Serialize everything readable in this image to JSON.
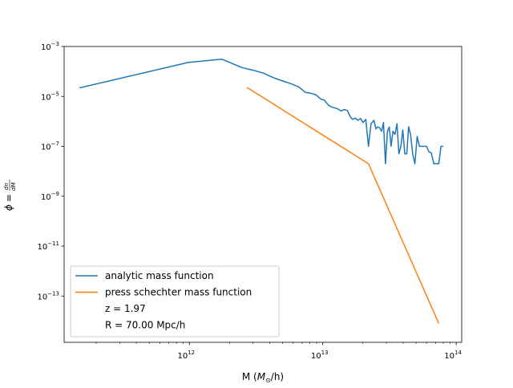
{
  "chart_data": {
    "type": "line",
    "title": "",
    "xlabel": "M ($M_\\odot$/h)",
    "ylabel": "$\\phi = \\frac{dn}{dM}$",
    "xscale": "log",
    "yscale": "log",
    "xlim": [
      115000000000.0,
      110000000000000.0
    ],
    "ylim": [
      1.4e-15,
      0.001
    ],
    "grid": false,
    "legend_position": "lower-left",
    "x_ticks": [
      {
        "value": 1000000000000.0,
        "base": "10",
        "exp": "12"
      },
      {
        "value": 10000000000000.0,
        "base": "10",
        "exp": "13"
      },
      {
        "value": 100000000000000.0,
        "base": "10",
        "exp": "14"
      }
    ],
    "y_ticks": [
      {
        "value": 1e-13,
        "base": "10",
        "exp": "−13"
      },
      {
        "value": 1e-11,
        "base": "10",
        "exp": "−11"
      },
      {
        "value": 1e-09,
        "base": "10",
        "exp": "−9"
      },
      {
        "value": 1e-07,
        "base": "10",
        "exp": "−7"
      },
      {
        "value": 1e-05,
        "base": "10",
        "exp": "−5"
      },
      {
        "value": 0.001,
        "base": "10",
        "exp": "−3"
      }
    ],
    "series": [
      {
        "name": "analytic mass function",
        "color": "#1f77b4",
        "x": [
          150000000000.0,
          980000000000.0,
          1750000000000.0,
          2500000000000.0,
          3050000000000.0,
          3600000000000.0,
          4300000000000.0,
          5100000000000.0,
          5800000000000.0,
          6600000000000.0,
          7400000000000.0,
          8100000000000.0,
          8900000000000.0,
          9600000000000.0,
          10300000000000.0,
          11000000000000.0,
          11600000000000.0,
          12200000000000.0,
          12900000000000.0,
          13700000000000.0,
          14500000000000.0,
          15300000000000.0,
          16000000000000.0,
          16700000000000.0,
          17500000000000.0,
          18300000000000.0,
          19200000000000.0,
          20000000000000.0,
          21000000000000.0,
          22000000000000.0,
          23000000000000.0,
          24200000000000.0,
          25000000000000.0,
          25800000000000.0,
          26700000000000.0,
          27600000000000.0,
          28500000000000.0,
          29500000000000.0,
          30500000000000.0,
          31500000000000.0,
          32500000000000.0,
          33600000000000.0,
          34800000000000.0,
          36000000000000.0,
          37200000000000.0,
          38500000000000.0,
          39800000000000.0,
          41200000000000.0,
          42600000000000.0,
          44000000000000.0,
          45500000000000.0,
          47200000000000.0,
          49000000000000.0,
          51000000000000.0,
          53000000000000.0,
          55200000000000.0,
          57500000000000.0,
          60000000000000.0,
          62500000000000.0,
          65000000000000.0,
          68000000000000.0,
          71000000000000.0,
          74000000000000.0,
          77000000000000.0,
          80000000000000.0
        ],
        "y": [
          2.2e-05,
          0.00023,
          0.00031,
          0.00014,
          0.00011,
          8.5e-05,
          5.5e-05,
          4e-05,
          3.2e-05,
          2.4e-05,
          1.45e-05,
          1.35e-05,
          1.15e-05,
          8e-06,
          7e-06,
          4.5e-06,
          3.8e-06,
          3.5e-06,
          3.2e-06,
          2.6e-06,
          3e-06,
          2.7e-06,
          1.6e-06,
          1.2e-06,
          1.35e-06,
          1.1e-06,
          1.3e-06,
          9e-07,
          1.2e-06,
          1e-07,
          8e-07,
          1.1e-06,
          5e-07,
          6e-07,
          5.5e-07,
          4e-07,
          9e-07,
          2e-08,
          4e-07,
          6e-07,
          1e-07,
          4e-07,
          3e-07,
          8e-07,
          5e-08,
          1e-07,
          4.5e-07,
          5e-08,
          5e-08,
          6e-07,
          3e-07,
          5e-08,
          2e-08,
          2.5e-07,
          1e-07,
          1e-07,
          1e-07,
          1e-07,
          6e-08,
          5.5e-08,
          2e-08,
          2e-08,
          2e-08,
          1e-07,
          1e-07
        ]
      },
      {
        "name": "press schechter mass function",
        "color": "#ff7f0e",
        "x": [
          2700000000000.0,
          22000000000000.0,
          74000000000000.0
        ],
        "y": [
          2.3e-05,
          2e-08,
          8e-15
        ]
      }
    ],
    "legend_extra": [
      "z = 1.97",
      "R = 70.00 Mpc/h"
    ]
  }
}
